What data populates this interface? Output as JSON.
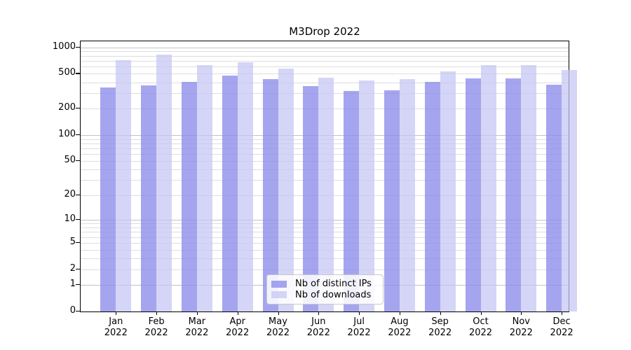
{
  "chart_data": {
    "type": "bar",
    "title": "M3Drop 2022",
    "categories": [
      "Jan 2022",
      "Feb 2022",
      "Mar 2022",
      "Apr 2022",
      "May 2022",
      "Jun 2022",
      "Jul 2022",
      "Aug 2022",
      "Sep 2022",
      "Oct 2022",
      "Nov 2022",
      "Dec 2022"
    ],
    "series": [
      {
        "name": "Nb of distinct IPs",
        "color": "#A5A5EF",
        "fill": "rgba(140,140,235,0.78)",
        "values": [
          350,
          370,
          402,
          475,
          433,
          360,
          318,
          322,
          402,
          446,
          440,
          378
        ]
      },
      {
        "name": "Nb of downloads",
        "color": "#D8D8F8",
        "fill": "rgba(197,197,244,0.72)",
        "values": [
          718,
          823,
          633,
          674,
          570,
          455,
          420,
          433,
          535,
          626,
          633,
          553
        ]
      }
    ],
    "yscale": "log10(value+1)",
    "ylim": [
      0,
      1170
    ],
    "yticks": [
      0,
      1,
      2,
      5,
      10,
      20,
      50,
      100,
      200,
      500,
      1000
    ],
    "grid": {
      "orientation": "horizontal",
      "minor_values": [
        2,
        3,
        4,
        5,
        6,
        7,
        8,
        9,
        20,
        30,
        40,
        50,
        60,
        70,
        80,
        90,
        200,
        300,
        400,
        500,
        600,
        700,
        800,
        900
      ],
      "major_values": [
        1,
        10,
        100,
        1000
      ],
      "minor_color": "#dedede",
      "major_color": "#c2c2c2"
    },
    "legend_position": "lower center",
    "xlabel": "",
    "ylabel": ""
  }
}
